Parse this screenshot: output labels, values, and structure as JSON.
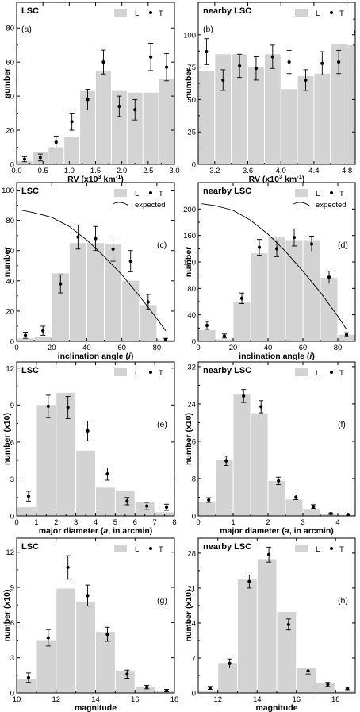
{
  "chart_data": [
    {
      "id": "a",
      "type": "bar",
      "title": "LSC",
      "panel_label": "(a)",
      "xlabel_parts": [
        "RV (x10",
        "3",
        " km",
        "-1",
        ")"
      ],
      "ylabel": "number",
      "legend": [
        "L",
        "T"
      ],
      "xlim": [
        0,
        3.0
      ],
      "ylim": [
        0,
        95
      ],
      "xticks": [
        0,
        0.5,
        1.0,
        1.5,
        2.0,
        2.5,
        3.0
      ],
      "xtick_labels": [
        "0.0",
        "0.5",
        "1.0",
        "1.5",
        "2.0",
        "2.5",
        "3.0"
      ],
      "yticks": [
        0,
        20,
        40,
        60,
        80
      ],
      "ytick_labels": [
        "0",
        "20",
        "40",
        "60",
        "80"
      ],
      "bar_width": 0.3,
      "series": [
        {
          "name": "L",
          "kind": "bar",
          "x": [
            0.15,
            0.45,
            0.75,
            1.05,
            1.35,
            1.65,
            1.95,
            2.25,
            2.55,
            2.85
          ],
          "values": [
            2,
            7,
            10,
            16,
            43,
            55,
            43,
            42,
            42,
            50
          ]
        },
        {
          "name": "T",
          "kind": "points",
          "x": [
            0.15,
            0.45,
            0.75,
            1.05,
            1.35,
            1.65,
            1.95,
            2.25,
            2.55,
            2.85
          ],
          "values": [
            3,
            4,
            13,
            25,
            38,
            60,
            34,
            32,
            63,
            57
          ],
          "err": [
            1.5,
            2,
            3.5,
            5,
            6,
            7,
            6,
            6,
            8,
            8
          ]
        }
      ]
    },
    {
      "id": "b",
      "type": "bar",
      "title": "nearby LSC",
      "panel_label": "(b)",
      "xlabel_parts": [
        "RV (x10",
        "3",
        " km",
        "-1",
        ")"
      ],
      "ylabel": "number",
      "legend": [
        "L",
        "T"
      ],
      "xlim": [
        3.0,
        4.9
      ],
      "ylim": [
        0,
        125
      ],
      "xticks": [
        3.2,
        3.6,
        4.0,
        4.4,
        4.8
      ],
      "xtick_labels": [
        "3.2",
        "3.6",
        "4.0",
        "4.4",
        "4.8"
      ],
      "yticks": [
        0,
        25,
        50,
        75,
        100
      ],
      "ytick_labels": [
        "0",
        "25",
        "50",
        "75",
        "100"
      ],
      "bar_width": 0.2,
      "series": [
        {
          "name": "L",
          "kind": "bar",
          "x": [
            3.1,
            3.3,
            3.5,
            3.7,
            3.9,
            4.1,
            4.3,
            4.5,
            4.7,
            4.9
          ],
          "values": [
            72,
            85,
            85,
            75,
            85,
            58,
            68,
            70,
            93,
            92
          ]
        },
        {
          "name": "T",
          "kind": "points",
          "x": [
            3.1,
            3.3,
            3.5,
            3.7,
            3.9,
            4.1,
            4.3,
            4.5,
            4.7,
            4.9
          ],
          "values": [
            87,
            65,
            76,
            74,
            83,
            79,
            65,
            78,
            79,
            102
          ],
          "err": [
            10,
            8,
            9,
            9,
            9,
            9,
            8,
            9,
            9,
            10
          ]
        }
      ]
    },
    {
      "id": "c",
      "type": "bar",
      "title": "LSC",
      "panel_label": "(c)",
      "xlabel": "inclination angle (",
      "xlabel_it": "i",
      "xlabel_end": ")",
      "ylabel": "number",
      "legend": [
        "L",
        "T",
        "expected"
      ],
      "xlim": [
        0,
        90
      ],
      "ylim": [
        0,
        105
      ],
      "xticks": [
        0,
        20,
        40,
        60,
        80
      ],
      "xtick_labels": [
        "0",
        "20",
        "40",
        "60",
        "80"
      ],
      "yticks": [
        0,
        20,
        40,
        60,
        80,
        100
      ],
      "ytick_labels": [
        "0",
        "20",
        "40",
        "60",
        "80",
        "100"
      ],
      "bar_width": 10,
      "series": [
        {
          "name": "L",
          "kind": "bar",
          "x": [
            5,
            15,
            25,
            35,
            45,
            55,
            65,
            75,
            85
          ],
          "values": [
            2,
            3,
            45,
            65,
            65,
            64,
            40,
            24,
            1
          ]
        },
        {
          "name": "T",
          "kind": "points",
          "x": [
            5,
            15,
            25,
            35,
            45,
            55,
            65,
            75,
            85
          ],
          "values": [
            4,
            7,
            38,
            69,
            68,
            61,
            53,
            26,
            1
          ],
          "err": [
            2,
            3,
            6,
            8,
            8,
            8,
            7,
            5,
            1
          ]
        },
        {
          "name": "expected",
          "kind": "line",
          "x": [
            2,
            10,
            20,
            30,
            40,
            50,
            60,
            70,
            80,
            85
          ],
          "values": [
            87,
            85,
            82,
            76,
            67,
            56,
            44,
            30,
            15,
            7
          ]
        }
      ]
    },
    {
      "id": "d",
      "type": "bar",
      "title": "nearby LSC",
      "panel_label": "(d)",
      "xlabel": "inclination angle (",
      "xlabel_it": "i",
      "xlabel_end": ")",
      "ylabel": "number",
      "legend": [
        "L",
        "T",
        "expected"
      ],
      "xlim": [
        0,
        90
      ],
      "ylim": [
        0,
        240
      ],
      "xticks": [
        0,
        20,
        40,
        60,
        80
      ],
      "xtick_labels": [
        "0",
        "20",
        "40",
        "60",
        "80"
      ],
      "yticks": [
        0,
        40,
        80,
        120,
        160,
        200
      ],
      "ytick_labels": [
        "0",
        "40",
        "80",
        "120",
        "160",
        "200"
      ],
      "bar_width": 10,
      "series": [
        {
          "name": "L",
          "kind": "bar",
          "x": [
            5,
            15,
            25,
            35,
            45,
            55,
            65,
            75,
            85
          ],
          "values": [
            17,
            3,
            60,
            133,
            157,
            153,
            153,
            96,
            10
          ]
        },
        {
          "name": "T",
          "kind": "points",
          "x": [
            5,
            15,
            25,
            35,
            45,
            55,
            65,
            75,
            85
          ],
          "values": [
            24,
            8,
            65,
            142,
            140,
            157,
            147,
            97,
            10
          ],
          "err": [
            6,
            3,
            8,
            12,
            12,
            13,
            12,
            9,
            3
          ]
        },
        {
          "name": "expected",
          "kind": "line",
          "x": [
            2,
            10,
            20,
            30,
            40,
            50,
            60,
            70,
            80,
            85
          ],
          "values": [
            208,
            205,
            198,
            183,
            162,
            136,
            106,
            74,
            38,
            18
          ]
        }
      ]
    },
    {
      "id": "e",
      "type": "bar",
      "title": "LSC",
      "panel_label": "(e)",
      "xlabel": "major diameter (",
      "xlabel_it": "a",
      "xlabel_end": ", in arcmin)",
      "ylabel": "number (x10)",
      "legend": [
        "L",
        "T"
      ],
      "xlim": [
        0,
        8
      ],
      "ylim": [
        0,
        12.5
      ],
      "xticks": [
        0,
        1,
        2,
        3,
        4,
        5,
        6,
        7,
        8
      ],
      "xtick_labels": [
        "0",
        "1",
        "2",
        "3",
        "4",
        "5",
        "6",
        "7",
        "8"
      ],
      "yticks": [
        0,
        3,
        6,
        9,
        12
      ],
      "ytick_labels": [
        "0",
        "3",
        "6",
        "9",
        "12"
      ],
      "bar_width": 1,
      "series": [
        {
          "name": "L",
          "kind": "bar",
          "x": [
            0.5,
            1.5,
            2.5,
            3.5,
            4.5,
            5.5,
            6.5,
            7.5
          ],
          "values": [
            0.7,
            9,
            10,
            5.3,
            2.3,
            2,
            1.1,
            0.3
          ]
        },
        {
          "name": "T",
          "kind": "points",
          "x": [
            0.6,
            1.6,
            2.6,
            3.6,
            4.6,
            5.6,
            6.6,
            7.6
          ],
          "values": [
            1.6,
            8.9,
            8.8,
            6.9,
            3.4,
            1.2,
            0.8,
            0.7
          ],
          "err": [
            0.4,
            0.9,
            0.9,
            0.8,
            0.5,
            0.3,
            0.3,
            0.25
          ]
        }
      ]
    },
    {
      "id": "f",
      "type": "bar",
      "title": "nearby LSC",
      "panel_label": "(f)",
      "xlabel": "major diameter (",
      "xlabel_it": "a",
      "xlabel_end": ", in arcmin)",
      "ylabel": "number (x10)",
      "legend": [
        "L",
        "T"
      ],
      "xlim": [
        0,
        4.5
      ],
      "ylim": [
        0,
        33
      ],
      "xticks": [
        0,
        1,
        2,
        3,
        4
      ],
      "xtick_labels": [
        "0",
        "1",
        "2",
        "3",
        "4"
      ],
      "yticks": [
        0,
        8,
        16,
        24,
        32
      ],
      "ytick_labels": [
        "0",
        "8",
        "16",
        "24",
        "32"
      ],
      "bar_width": 0.5,
      "series": [
        {
          "name": "L",
          "kind": "bar",
          "x": [
            0.25,
            0.75,
            1.25,
            1.75,
            2.25,
            2.75,
            3.25,
            3.75,
            4.25
          ],
          "values": [
            3,
            12,
            26,
            22,
            7.5,
            3.5,
            1.5,
            0.5,
            0.2
          ]
        },
        {
          "name": "T",
          "kind": "points",
          "x": [
            0.3,
            0.8,
            1.3,
            1.8,
            2.3,
            2.8,
            3.3,
            3.8,
            4.3
          ],
          "values": [
            3.4,
            11.8,
            25.7,
            23.4,
            7.5,
            4,
            2,
            0.5,
            0.3
          ],
          "err": [
            0.5,
            1,
            1.4,
            1.3,
            0.8,
            0.5,
            0.4,
            0.15,
            0.1
          ]
        }
      ]
    },
    {
      "id": "g",
      "type": "bar",
      "title": "LSC",
      "panel_label": "(g)",
      "xlabel": "magnitude",
      "ylabel": "number (x10)",
      "legend": [
        "L",
        "T"
      ],
      "xlim": [
        10,
        18
      ],
      "ylim": [
        0,
        13.2
      ],
      "xticks": [
        10,
        12,
        14,
        16,
        18
      ],
      "xtick_labels": [
        "10",
        "12",
        "14",
        "16",
        "18"
      ],
      "yticks": [
        0,
        3,
        6,
        9,
        12
      ],
      "ytick_labels": [
        "0",
        "3",
        "6",
        "9",
        "12"
      ],
      "bar_width": 1,
      "series": [
        {
          "name": "L",
          "kind": "bar",
          "x": [
            10.5,
            11.5,
            12.5,
            13.5,
            14.5,
            15.5,
            16.5,
            17.5
          ],
          "values": [
            1.2,
            4.5,
            8.9,
            7.8,
            5.2,
            1.9,
            0.5,
            0.2
          ]
        },
        {
          "name": "T",
          "kind": "points",
          "x": [
            10.6,
            11.6,
            12.6,
            13.6,
            14.6,
            15.6,
            16.6,
            17.6
          ],
          "values": [
            1.3,
            4.7,
            10.7,
            8.3,
            5,
            1.6,
            0.5,
            0.2
          ],
          "err": [
            0.4,
            0.7,
            1,
            0.9,
            0.6,
            0.35,
            0.15,
            0.1
          ]
        }
      ]
    },
    {
      "id": "h",
      "type": "bar",
      "title": "nearby LSC",
      "panel_label": "(h)",
      "xlabel": "magnitude",
      "ylabel": "number (x10)",
      "legend": [
        "L",
        "T"
      ],
      "xlim": [
        11,
        19
      ],
      "ylim": [
        0,
        31
      ],
      "xticks": [
        12,
        14,
        16,
        18
      ],
      "xtick_labels": [
        "12",
        "14",
        "16",
        "18"
      ],
      "yticks": [
        0,
        7,
        14,
        21,
        28
      ],
      "ytick_labels": [
        "0",
        "7",
        "14",
        "21",
        "28"
      ],
      "bar_width": 1,
      "series": [
        {
          "name": "L",
          "kind": "bar",
          "x": [
            11.5,
            12.5,
            13.5,
            14.5,
            15.5,
            16.5,
            17.5,
            18.5
          ],
          "values": [
            0.5,
            6,
            22.7,
            26.8,
            16.2,
            5,
            2,
            0.3
          ]
        },
        {
          "name": "T",
          "kind": "points",
          "x": [
            11.6,
            12.6,
            13.6,
            14.6,
            15.6,
            16.6,
            17.6,
            18.6
          ],
          "values": [
            1,
            5.9,
            22.3,
            27.7,
            13.7,
            4.4,
            1.7,
            0.9
          ],
          "err": [
            0.3,
            0.9,
            1.3,
            1.5,
            1.1,
            0.6,
            0.4,
            0.25
          ]
        }
      ]
    }
  ]
}
